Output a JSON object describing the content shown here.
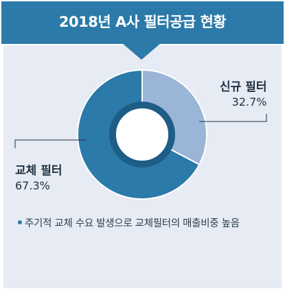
{
  "header": {
    "title": "2018년 A사 필터공급 현황"
  },
  "chart_data": {
    "type": "pie",
    "title": "2018년 A사 필터공급 현황",
    "categories": [
      "신규 필터",
      "교체 필터"
    ],
    "values": [
      32.7,
      67.3
    ],
    "value_labels": [
      "32.7%",
      "67.3%"
    ],
    "colors": [
      "#9ab5d6",
      "#2b7aa9"
    ],
    "legend": "none"
  },
  "note": {
    "text": "주기적 교체 수요 발생으로 교체필터의 매출비중 높음"
  },
  "colors": {
    "header": "#2b7aa9",
    "panel": "#e6ebf4",
    "inner_ring": "#1e5d86"
  }
}
